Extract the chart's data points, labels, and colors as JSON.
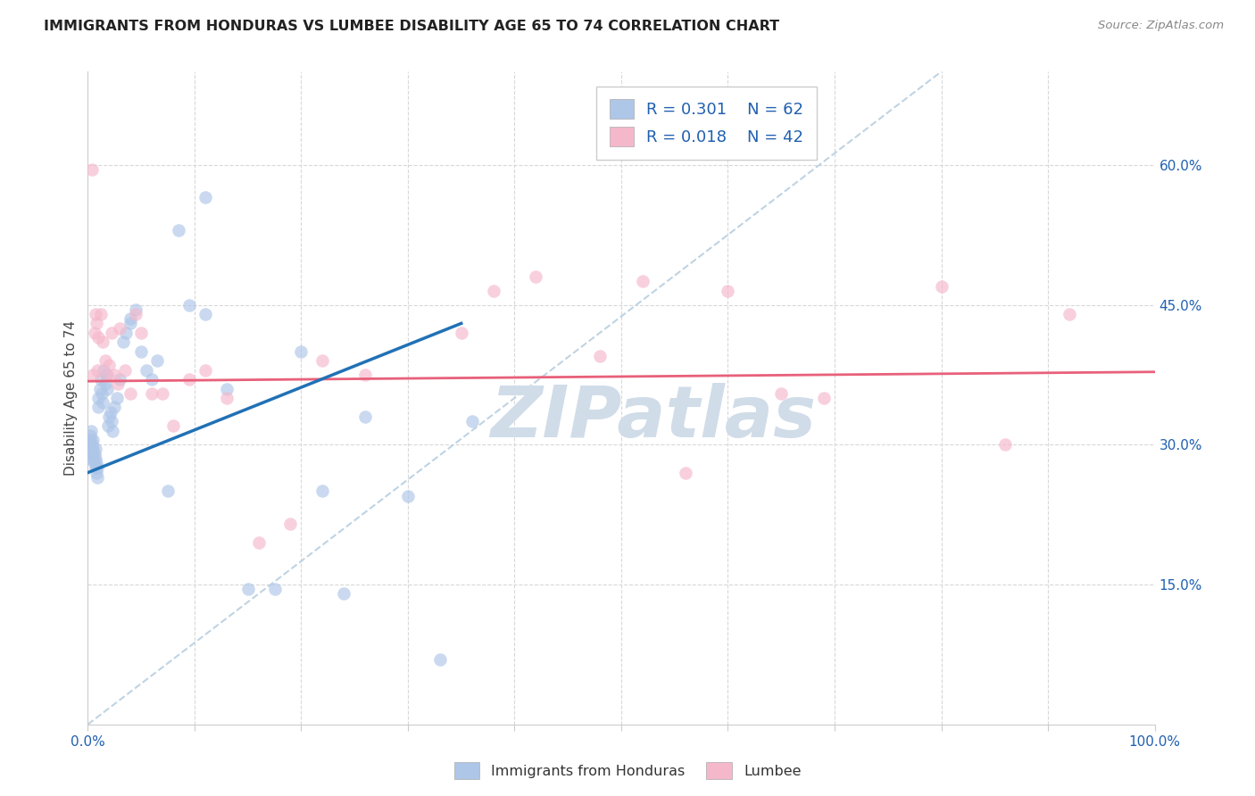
{
  "title": "IMMIGRANTS FROM HONDURAS VS LUMBEE DISABILITY AGE 65 TO 74 CORRELATION CHART",
  "source": "Source: ZipAtlas.com",
  "ylabel": "Disability Age 65 to 74",
  "xlim": [
    0.0,
    1.0
  ],
  "ylim": [
    0.0,
    0.7
  ],
  "y_ticks": [
    0.15,
    0.3,
    0.45,
    0.6
  ],
  "y_tick_labels": [
    "15.0%",
    "30.0%",
    "45.0%",
    "60.0%"
  ],
  "legend_r1": "R = 0.301",
  "legend_n1": "N = 62",
  "legend_r2": "R = 0.018",
  "legend_n2": "N = 42",
  "blue_color": "#aec6e8",
  "pink_color": "#f5b8cb",
  "blue_line_color": "#2171b5",
  "pink_line_color": "#e8607a",
  "dashed_line_color": "#b8cfe0",
  "legend_text_color": "#2060b0",
  "grid_color": "#d8d8d8",
  "background_color": "#ffffff",
  "watermark_color": "#d0dce8",
  "blue_scatter_x": [
    0.001,
    0.002,
    0.002,
    0.003,
    0.003,
    0.003,
    0.004,
    0.004,
    0.005,
    0.005,
    0.005,
    0.006,
    0.006,
    0.007,
    0.007,
    0.007,
    0.008,
    0.008,
    0.009,
    0.009,
    0.01,
    0.01,
    0.011,
    0.012,
    0.013,
    0.014,
    0.015,
    0.016,
    0.017,
    0.018,
    0.019,
    0.02,
    0.021,
    0.022,
    0.023,
    0.025,
    0.027,
    0.03,
    0.033,
    0.036,
    0.04,
    0.045,
    0.05,
    0.055,
    0.06,
    0.065,
    0.075,
    0.085,
    0.095,
    0.11,
    0.13,
    0.15,
    0.175,
    0.2,
    0.22,
    0.24,
    0.26,
    0.3,
    0.33,
    0.36,
    0.04,
    0.11
  ],
  "blue_scatter_y": [
    0.285,
    0.3,
    0.31,
    0.295,
    0.305,
    0.315,
    0.29,
    0.3,
    0.285,
    0.295,
    0.305,
    0.28,
    0.29,
    0.275,
    0.285,
    0.295,
    0.27,
    0.28,
    0.265,
    0.275,
    0.34,
    0.35,
    0.36,
    0.37,
    0.355,
    0.345,
    0.38,
    0.365,
    0.375,
    0.36,
    0.32,
    0.33,
    0.335,
    0.325,
    0.315,
    0.34,
    0.35,
    0.37,
    0.41,
    0.42,
    0.435,
    0.445,
    0.4,
    0.38,
    0.37,
    0.39,
    0.25,
    0.53,
    0.45,
    0.44,
    0.36,
    0.145,
    0.145,
    0.4,
    0.25,
    0.14,
    0.33,
    0.245,
    0.07,
    0.325,
    0.43,
    0.565
  ],
  "pink_scatter_x": [
    0.004,
    0.005,
    0.006,
    0.007,
    0.008,
    0.009,
    0.01,
    0.012,
    0.014,
    0.016,
    0.018,
    0.02,
    0.022,
    0.025,
    0.028,
    0.03,
    0.035,
    0.04,
    0.045,
    0.05,
    0.06,
    0.07,
    0.08,
    0.095,
    0.11,
    0.13,
    0.16,
    0.19,
    0.22,
    0.26,
    0.35,
    0.38,
    0.42,
    0.48,
    0.52,
    0.56,
    0.6,
    0.65,
    0.69,
    0.8,
    0.86,
    0.92
  ],
  "pink_scatter_y": [
    0.595,
    0.375,
    0.42,
    0.44,
    0.43,
    0.38,
    0.415,
    0.44,
    0.41,
    0.39,
    0.375,
    0.385,
    0.42,
    0.375,
    0.365,
    0.425,
    0.38,
    0.355,
    0.44,
    0.42,
    0.355,
    0.355,
    0.32,
    0.37,
    0.38,
    0.35,
    0.195,
    0.215,
    0.39,
    0.375,
    0.42,
    0.465,
    0.48,
    0.395,
    0.475,
    0.27,
    0.465,
    0.355,
    0.35,
    0.47,
    0.3,
    0.44
  ],
  "blue_trend_x": [
    0.0,
    0.35
  ],
  "blue_trend_y": [
    0.27,
    0.43
  ],
  "pink_trend_x": [
    0.0,
    1.0
  ],
  "pink_trend_y": [
    0.368,
    0.378
  ],
  "dashed_trend_x": [
    0.0,
    0.8
  ],
  "dashed_trend_y": [
    0.0,
    0.7
  ]
}
